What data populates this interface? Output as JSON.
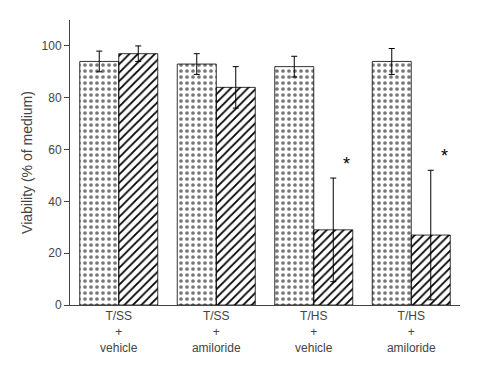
{
  "chart_data": {
    "type": "bar",
    "categories": [
      "T/SS\n+\nvehicle",
      "T/SS\n+\namiloride",
      "T/HS\n+\nvehicle",
      "T/HS\n+\namiloride"
    ],
    "series": [
      {
        "color": "#1a1a1a",
        "values": [
          94,
          93,
          92,
          94
        ],
        "errors": [
          4,
          4,
          4,
          5
        ]
      },
      {
        "color": "#e0e0e0",
        "values": [
          97,
          84,
          29,
          27
        ],
        "errors": [
          3,
          8,
          20,
          25
        ]
      }
    ],
    "ylabel": "Viability (% of medium)",
    "ylim": [
      0,
      110
    ],
    "yticks": [
      0,
      20,
      40,
      60,
      80,
      100
    ],
    "grid": false,
    "annotations": [
      {
        "text": "*",
        "category": "T/HS\n+\nvehicle",
        "series": 1
      },
      {
        "text": "*",
        "category": "T/HS\n+\namiloride",
        "series": 1
      }
    ]
  }
}
